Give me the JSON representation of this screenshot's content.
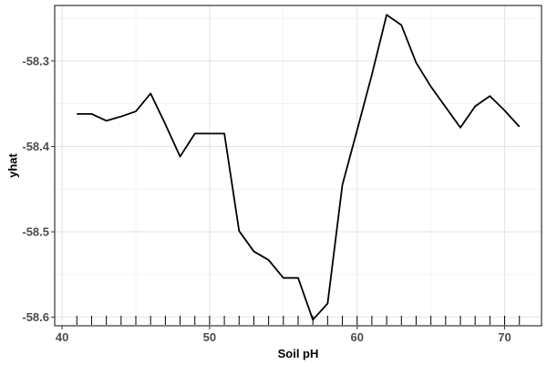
{
  "chart_data": {
    "type": "line",
    "xlabel": "Soil pH",
    "ylabel": "yhat",
    "xlim": [
      39.5,
      72.5
    ],
    "ylim": [
      -58.61,
      -58.235
    ],
    "x_ticks": [
      40,
      50,
      60,
      70
    ],
    "x_tick_labels": [
      "40",
      "50",
      "60",
      "70"
    ],
    "y_ticks": [
      -58.3,
      -58.4,
      -58.5,
      -58.6
    ],
    "y_tick_labels": [
      "-58.3",
      "-58.4",
      "-58.5",
      "-58.6"
    ],
    "grid": true,
    "line_color": "#000000",
    "rug_x": [
      41,
      42,
      43,
      44,
      45,
      46,
      47,
      48,
      49,
      50,
      51,
      52,
      53,
      54,
      55,
      56,
      57,
      58,
      59,
      60,
      61,
      62,
      63,
      64,
      65,
      66,
      67,
      68,
      69,
      70,
      71
    ],
    "series": [
      {
        "x": [
          41,
          42,
          43,
          44,
          45,
          46,
          47,
          48,
          49,
          50,
          51,
          52,
          53,
          54,
          55,
          56,
          57,
          58,
          59,
          60,
          61,
          62,
          63,
          64,
          65,
          66,
          67,
          68,
          69,
          70,
          71
        ],
        "y": [
          -58.362,
          -58.362,
          -58.37,
          -58.365,
          -58.359,
          -58.338,
          -58.374,
          -58.412,
          -58.385,
          -58.385,
          -58.385,
          -58.499,
          -58.523,
          -58.533,
          -58.554,
          -58.554,
          -58.603,
          -58.584,
          -58.445,
          -58.381,
          -58.316,
          -58.246,
          -58.258,
          -58.302,
          -58.33,
          -58.354,
          -58.378,
          -58.353,
          -58.341,
          -58.358,
          -58.377
        ]
      }
    ]
  }
}
